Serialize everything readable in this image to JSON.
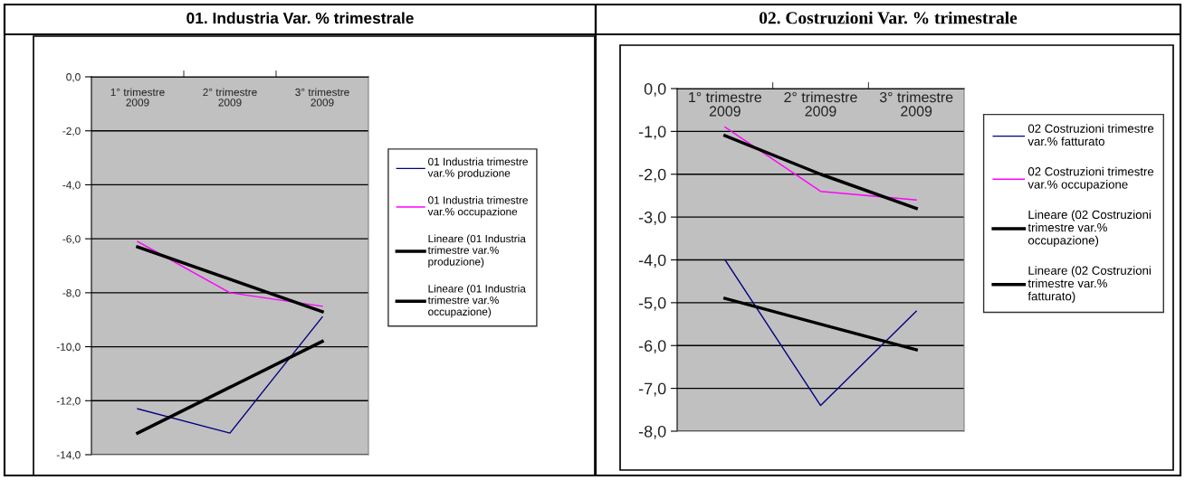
{
  "chart_data": [
    {
      "type": "line",
      "title": "01. Industria Var. % trimestrale",
      "categories": [
        "1° trimestre\n2009",
        "2° trimestre\n2009",
        "3° trimestre\n2009"
      ],
      "series": [
        {
          "name": "01 Industria trimestre\nvar.% produzione",
          "color": "#000080",
          "values": [
            -12.3,
            -13.2,
            -8.9
          ]
        },
        {
          "name": "01 Industria trimestre\nvar.% occupazione",
          "color": "#ff00ff",
          "values": [
            -6.1,
            -8.0,
            -8.5
          ]
        },
        {
          "name": "Lineare (01 Industria\ntrimestre var.%\nproduzione)",
          "color": "#000000",
          "values": [
            -13.2,
            -11.5,
            -9.8
          ]
        },
        {
          "name": "Lineare (01 Industria\ntrimestre var.%\noccupazione)",
          "color": "#000000",
          "values": [
            -6.3,
            -7.5,
            -8.7
          ]
        }
      ],
      "ylim": [
        -14,
        0
      ],
      "yticks": [
        {
          "value": 0,
          "label": "0,0"
        },
        {
          "value": -2,
          "label": "-2,0"
        },
        {
          "value": -4,
          "label": "-4,0"
        },
        {
          "value": -6,
          "label": "-6,0"
        },
        {
          "value": -8,
          "label": "-8,0"
        },
        {
          "value": -10,
          "label": "-10,0"
        },
        {
          "value": -12,
          "label": "-12,0"
        },
        {
          "value": -14,
          "label": "-14,0"
        }
      ],
      "grid": "y",
      "legend": "right",
      "marker": "none",
      "line_style": "solid"
    },
    {
      "type": "line",
      "title": "02. Costruzioni Var. % trimestrale",
      "categories": [
        "1° trimestre\n2009",
        "2° trimestre\n2009",
        "3° trimestre\n2009"
      ],
      "series": [
        {
          "name": "02 Costruzioni trimestre\nvar.% fatturato",
          "color": "#000080",
          "values": [
            -4.0,
            -7.4,
            -5.2
          ]
        },
        {
          "name": "02 Costruzioni trimestre\nvar.% occupazione",
          "color": "#ff00ff",
          "values": [
            -0.9,
            -2.4,
            -2.6
          ]
        },
        {
          "name": "Lineare (02 Costruzioni\ntrimestre var.%\noccupazione)",
          "color": "#000000",
          "values": [
            -1.1,
            -2.0,
            -2.8
          ]
        },
        {
          "name": "Lineare (02 Costruzioni\ntrimestre var.%\nfatturato)",
          "color": "#000000",
          "values": [
            -4.9,
            -5.5,
            -6.1
          ]
        }
      ],
      "ylim": [
        -8,
        0
      ],
      "yticks": [
        {
          "value": 0,
          "label": "0,0"
        },
        {
          "value": -1,
          "label": "-1,0"
        },
        {
          "value": -2,
          "label": "-2,0"
        },
        {
          "value": -3,
          "label": "-3,0"
        },
        {
          "value": -4,
          "label": "-4,0"
        },
        {
          "value": -5,
          "label": "-5,0"
        },
        {
          "value": -6,
          "label": "-6,0"
        },
        {
          "value": -7,
          "label": "-7,0"
        },
        {
          "value": -8,
          "label": "-8,0"
        }
      ],
      "grid": "y",
      "legend": "right",
      "marker": "none",
      "line_style": "solid"
    }
  ]
}
